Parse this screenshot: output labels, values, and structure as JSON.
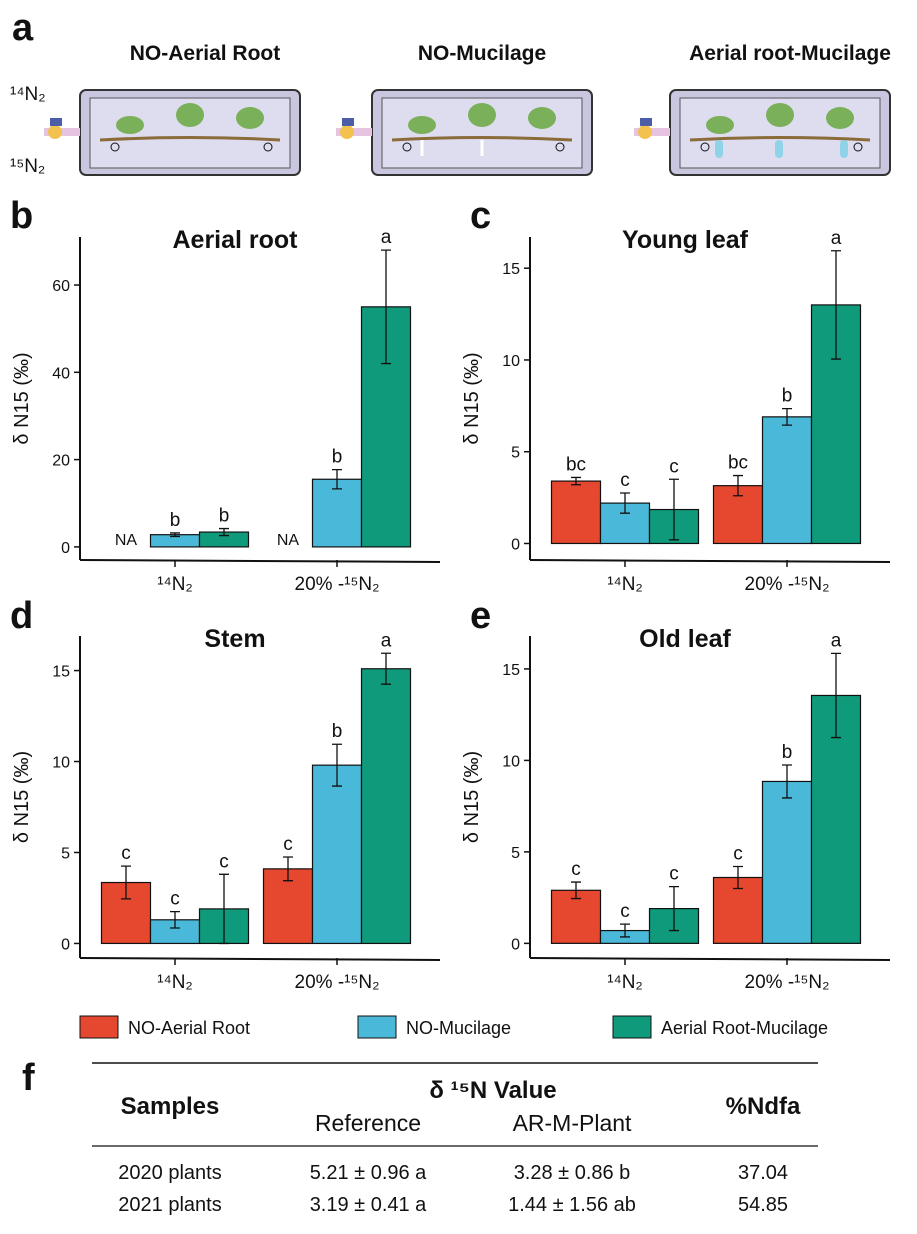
{
  "panel_labels": [
    "a",
    "b",
    "c",
    "d",
    "e",
    "f"
  ],
  "schematic": {
    "titles": [
      "NO-Aerial Root",
      "NO-Mucilage",
      "Aerial root-Mucilage"
    ],
    "gas_labels": [
      "¹⁴N₂",
      "¹⁵N₂"
    ]
  },
  "legend": [
    {
      "name": "NO-Aerial Root",
      "color": "#e5472f"
    },
    {
      "name": "NO-Mucilage",
      "color": "#4ab8d8"
    },
    {
      "name": "Aerial Root-Mucilage",
      "color": "#0f9a7b"
    }
  ],
  "chart_data": [
    {
      "type": "bar",
      "title": "Aerial root",
      "y_label": "δ N15 (‰)",
      "categories": [
        "¹⁴N₂",
        "20% -¹⁵N₂"
      ],
      "ylim": [
        -3,
        71
      ],
      "yticks": [
        0,
        20,
        40,
        60
      ],
      "series": [
        {
          "color": "#e5472f",
          "values": [
            null,
            null
          ],
          "errors": [
            null,
            null
          ],
          "letters": [
            "NA",
            "NA"
          ]
        },
        {
          "color": "#4ab8d8",
          "values": [
            2.8,
            15.5
          ],
          "errors": [
            0.4,
            2.2
          ],
          "letters": [
            "b",
            "b"
          ]
        },
        {
          "color": "#0f9a7b",
          "values": [
            3.4,
            55
          ],
          "errors": [
            0.8,
            13
          ],
          "letters": [
            "b",
            "a"
          ]
        }
      ]
    },
    {
      "type": "bar",
      "title": "Young leaf",
      "y_label": "δ N15 (‰)",
      "categories": [
        "¹⁴N₂",
        "20% -¹⁵N₂"
      ],
      "ylim": [
        -0.9,
        16.7
      ],
      "yticks": [
        0,
        5,
        10,
        15
      ],
      "series": [
        {
          "color": "#e5472f",
          "values": [
            3.4,
            3.15
          ],
          "errors": [
            0.2,
            0.55
          ],
          "letters": [
            "bc",
            "bc"
          ]
        },
        {
          "color": "#4ab8d8",
          "values": [
            2.2,
            6.9
          ],
          "errors": [
            0.55,
            0.45
          ],
          "letters": [
            "c",
            "b"
          ]
        },
        {
          "color": "#0f9a7b",
          "values": [
            1.85,
            13.0
          ],
          "errors": [
            1.65,
            2.95
          ],
          "letters": [
            "c",
            "a"
          ]
        }
      ]
    },
    {
      "type": "bar",
      "title": "Stem",
      "y_label": "δ N15 (‰)",
      "categories": [
        "¹⁴N₂",
        "20% -¹⁵N₂"
      ],
      "ylim": [
        -0.8,
        16.9
      ],
      "yticks": [
        0,
        5,
        10,
        15
      ],
      "series": [
        {
          "color": "#e5472f",
          "values": [
            3.35,
            4.1
          ],
          "errors": [
            0.9,
            0.65
          ],
          "letters": [
            "c",
            "c"
          ]
        },
        {
          "color": "#4ab8d8",
          "values": [
            1.3,
            9.8
          ],
          "errors": [
            0.45,
            1.15
          ],
          "letters": [
            "c",
            "b"
          ]
        },
        {
          "color": "#0f9a7b",
          "values": [
            1.9,
            15.1
          ],
          "errors": [
            1.9,
            0.85
          ],
          "letters": [
            "c",
            "a"
          ]
        }
      ]
    },
    {
      "type": "bar",
      "title": "Old leaf",
      "y_label": "δ N15 (‰)",
      "categories": [
        "¹⁴N₂",
        "20% -¹⁵N₂"
      ],
      "ylim": [
        -0.8,
        16.8
      ],
      "yticks": [
        0,
        5,
        10,
        15
      ],
      "series": [
        {
          "color": "#e5472f",
          "values": [
            2.9,
            3.6
          ],
          "errors": [
            0.45,
            0.6
          ],
          "letters": [
            "c",
            "c"
          ]
        },
        {
          "color": "#4ab8d8",
          "values": [
            0.7,
            8.85
          ],
          "errors": [
            0.35,
            0.9
          ],
          "letters": [
            "c",
            "b"
          ]
        },
        {
          "color": "#0f9a7b",
          "values": [
            1.9,
            13.55
          ],
          "errors": [
            1.2,
            2.3
          ],
          "letters": [
            "c",
            "a"
          ]
        }
      ]
    }
  ],
  "table": {
    "header": {
      "samples": "Samples",
      "group": "δ ¹⁵N Value",
      "reference": "Reference",
      "plant": "AR-M-Plant",
      "ndfa": "%Ndfa"
    },
    "rows": [
      [
        "2020 plants",
        "5.21 ± 0.96 a",
        "3.28 ± 0.86 b",
        "37.04"
      ],
      [
        "2021 plants",
        "3.19 ± 0.41 a",
        "1.44 ± 1.56 ab",
        "54.85"
      ]
    ]
  }
}
